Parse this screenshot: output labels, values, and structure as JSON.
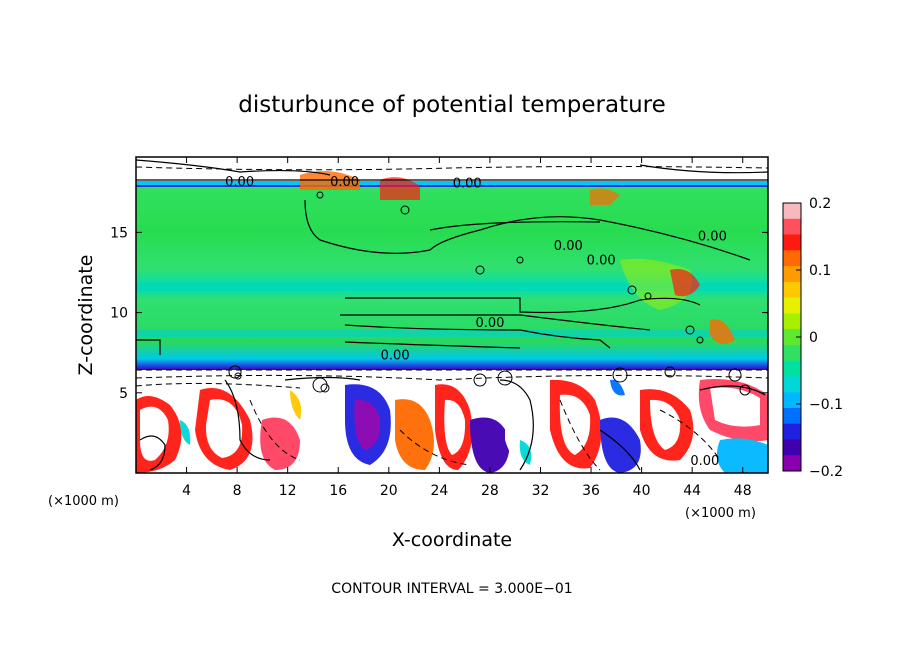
{
  "chart_data": {
    "type": "heatmap",
    "title": "disturbunce of potential temperature",
    "xlabel": "X-coordinate",
    "ylabel": "Z-coordinate",
    "x_unit": "(×1000 m)",
    "y_unit": "(×1000 m)",
    "xlim": [
      0,
      50
    ],
    "ylim": [
      0,
      19.7
    ],
    "x_ticks": [
      4,
      8,
      12,
      16,
      20,
      24,
      28,
      32,
      36,
      40,
      44,
      48
    ],
    "y_ticks": [
      5,
      10,
      15
    ],
    "colorbar": {
      "range": [
        -0.2,
        0.2
      ],
      "ticks": [
        {
          "value": 0.2,
          "label": "0.2"
        },
        {
          "value": 0.1,
          "label": "0.1"
        },
        {
          "value": 0,
          "label": "0"
        },
        {
          "value": -0.1,
          "label": "−0.1"
        },
        {
          "value": -0.2,
          "label": "−0.2"
        }
      ],
      "colors": [
        "#f7b9bd",
        "#ff5060",
        "#ff1a10",
        "#ff6a00",
        "#ff9a00",
        "#ffc800",
        "#e6f000",
        "#a8f000",
        "#60e830",
        "#30e060",
        "#00e0a0",
        "#00d8d8",
        "#00b8ff",
        "#0070ff",
        "#2020e0",
        "#4000b0",
        "#8800b0"
      ]
    },
    "contour_labels": [
      {
        "x": 16.5,
        "z": 18.2,
        "text": "0.00"
      },
      {
        "x": 8.2,
        "z": 18.2,
        "text": "0.00"
      },
      {
        "x": 26.2,
        "z": 18.1,
        "text": "0.00"
      },
      {
        "x": 45.6,
        "z": 14.8,
        "text": "0.00"
      },
      {
        "x": 34.2,
        "z": 14.2,
        "text": "0.00"
      },
      {
        "x": 36.8,
        "z": 13.3,
        "text": "0.00"
      },
      {
        "x": 28.0,
        "z": 9.4,
        "text": "0.00"
      },
      {
        "x": 20.5,
        "z": 7.4,
        "text": "0.00"
      },
      {
        "x": 45.0,
        "z": 0.8,
        "text": "0.00"
      }
    ],
    "footer": "CONTOUR INTERVAL = 3.000E−01"
  }
}
